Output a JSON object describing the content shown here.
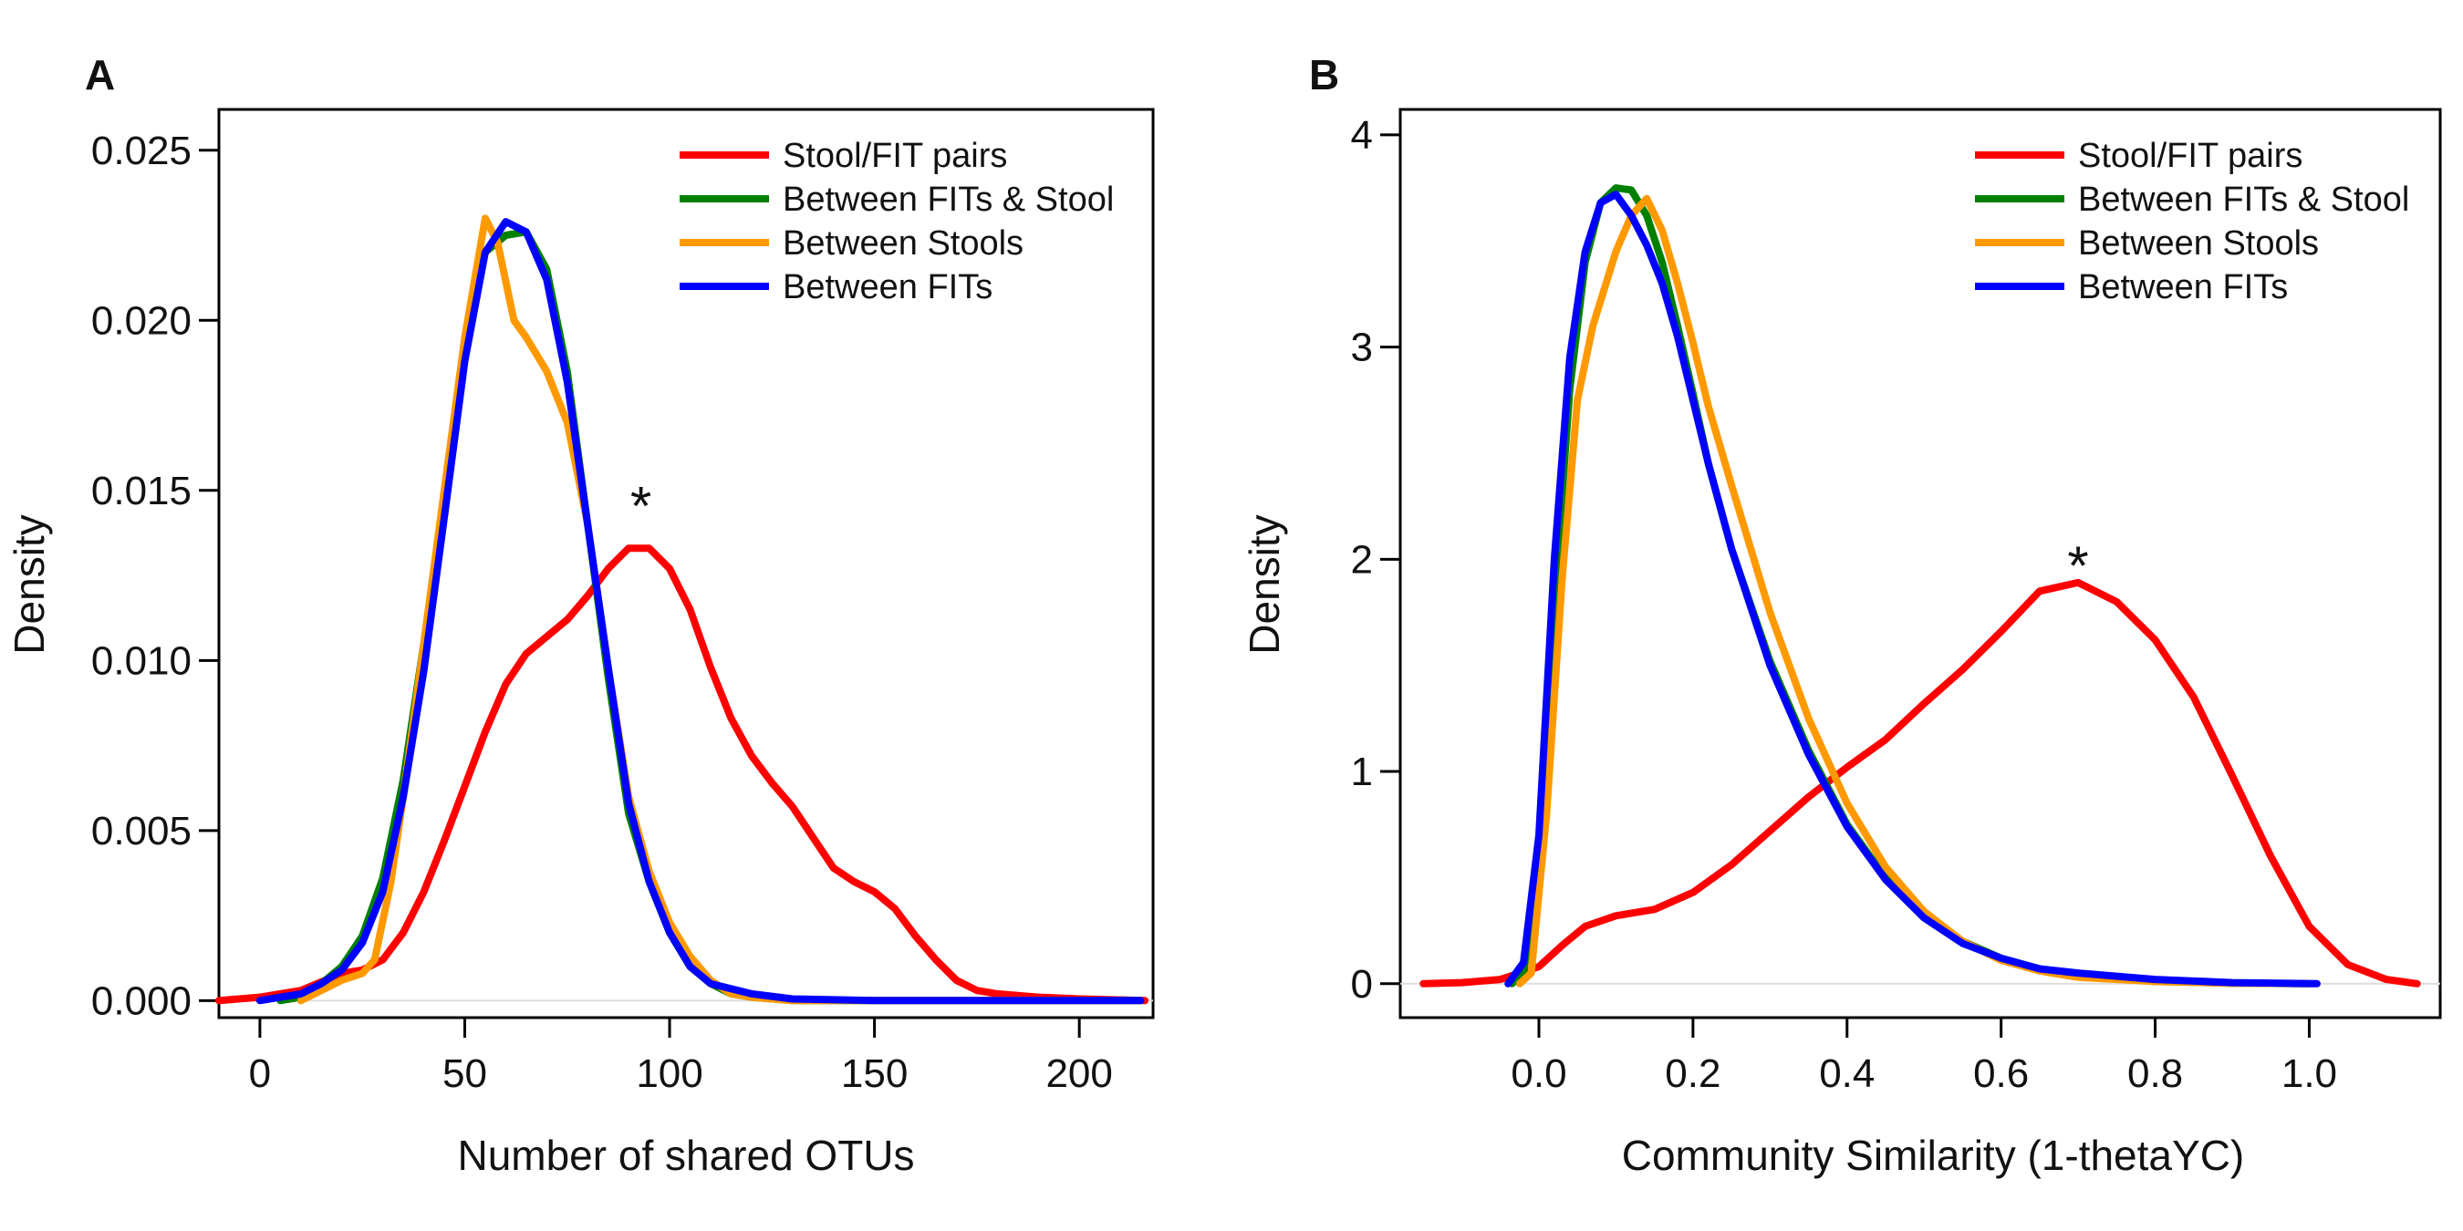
{
  "chart_data": [
    {
      "type": "line",
      "panel_label": "A",
      "xlabel": "Number of shared OTUs",
      "ylabel": "Density",
      "xlim": [
        -10,
        218
      ],
      "ylim": [
        -0.0005,
        0.0262
      ],
      "x_ticks": [
        0,
        50,
        100,
        150,
        200
      ],
      "x_tick_labels": [
        "0",
        "50",
        "100",
        "150",
        "200"
      ],
      "y_ticks": [
        0.0,
        0.005,
        0.01,
        0.015,
        0.02,
        0.025
      ],
      "y_tick_labels": [
        "0.000",
        "0.005",
        "0.010",
        "0.015",
        "0.020",
        "0.025"
      ],
      "legend_position": "top-right",
      "annotation": {
        "text": "*",
        "x": 93,
        "y": 0.0148
      },
      "series": [
        {
          "name": "Stool/FIT pairs",
          "color": "#ff0000",
          "points": [
            [
              -10,
              0
            ],
            [
              0,
              0.0001
            ],
            [
              10,
              0.0003
            ],
            [
              20,
              0.0008
            ],
            [
              25,
              0.0009
            ],
            [
              30,
              0.0012
            ],
            [
              35,
              0.002
            ],
            [
              40,
              0.0032
            ],
            [
              45,
              0.0047
            ],
            [
              50,
              0.0063
            ],
            [
              55,
              0.0079
            ],
            [
              60,
              0.0093
            ],
            [
              65,
              0.0102
            ],
            [
              70,
              0.0107
            ],
            [
              75,
              0.0112
            ],
            [
              80,
              0.0119
            ],
            [
              85,
              0.0127
            ],
            [
              90,
              0.0133
            ],
            [
              95,
              0.0133
            ],
            [
              100,
              0.0127
            ],
            [
              105,
              0.0115
            ],
            [
              110,
              0.0098
            ],
            [
              115,
              0.0083
            ],
            [
              120,
              0.0072
            ],
            [
              125,
              0.0064
            ],
            [
              130,
              0.0057
            ],
            [
              135,
              0.0048
            ],
            [
              140,
              0.0039
            ],
            [
              145,
              0.0035
            ],
            [
              150,
              0.0032
            ],
            [
              155,
              0.0027
            ],
            [
              160,
              0.0019
            ],
            [
              165,
              0.0012
            ],
            [
              170,
              0.0006
            ],
            [
              175,
              0.0003
            ],
            [
              180,
              0.0002
            ],
            [
              190,
              0.0001
            ],
            [
              200,
              5e-05
            ],
            [
              216,
              0
            ]
          ]
        },
        {
          "name": "Between FITs & Stool",
          "color": "#008000",
          "points": [
            [
              5,
              0
            ],
            [
              10,
              0.0001
            ],
            [
              15,
              0.0005
            ],
            [
              20,
              0.001
            ],
            [
              25,
              0.0019
            ],
            [
              30,
              0.0036
            ],
            [
              35,
              0.0065
            ],
            [
              40,
              0.0105
            ],
            [
              45,
              0.0148
            ],
            [
              50,
              0.0193
            ],
            [
              55,
              0.022
            ],
            [
              60,
              0.0225
            ],
            [
              65,
              0.0226
            ],
            [
              70,
              0.0215
            ],
            [
              75,
              0.0185
            ],
            [
              80,
              0.014
            ],
            [
              85,
              0.0095
            ],
            [
              90,
              0.0055
            ],
            [
              95,
              0.0035
            ],
            [
              100,
              0.002
            ],
            [
              105,
              0.001
            ],
            [
              110,
              0.0005
            ],
            [
              115,
              0.0002
            ],
            [
              120,
              0.0001
            ],
            [
              130,
              0
            ],
            [
              215,
              0
            ]
          ]
        },
        {
          "name": "Between Stools",
          "color": "#ff9900",
          "points": [
            [
              10,
              0
            ],
            [
              15,
              0.0003
            ],
            [
              20,
              0.0006
            ],
            [
              25,
              0.0008
            ],
            [
              28,
              0.0012
            ],
            [
              32,
              0.0035
            ],
            [
              35,
              0.006
            ],
            [
              40,
              0.0105
            ],
            [
              45,
              0.015
            ],
            [
              50,
              0.0195
            ],
            [
              55,
              0.023
            ],
            [
              58,
              0.0223
            ],
            [
              62,
              0.02
            ],
            [
              65,
              0.0195
            ],
            [
              70,
              0.0185
            ],
            [
              75,
              0.017
            ],
            [
              80,
              0.014
            ],
            [
              85,
              0.0098
            ],
            [
              90,
              0.006
            ],
            [
              95,
              0.0038
            ],
            [
              100,
              0.0023
            ],
            [
              105,
              0.0013
            ],
            [
              110,
              0.0006
            ],
            [
              115,
              0.0002
            ],
            [
              120,
              0.0001
            ],
            [
              130,
              0
            ],
            [
              215,
              0
            ]
          ]
        },
        {
          "name": "Between FITs",
          "color": "#0000ff",
          "points": [
            [
              0,
              0
            ],
            [
              10,
              0.0002
            ],
            [
              15,
              0.0005
            ],
            [
              20,
              0.0009
            ],
            [
              25,
              0.0017
            ],
            [
              30,
              0.0032
            ],
            [
              35,
              0.006
            ],
            [
              40,
              0.0097
            ],
            [
              45,
              0.0142
            ],
            [
              50,
              0.0188
            ],
            [
              55,
              0.022
            ],
            [
              60,
              0.0229
            ],
            [
              65,
              0.0226
            ],
            [
              70,
              0.0212
            ],
            [
              75,
              0.0182
            ],
            [
              80,
              0.014
            ],
            [
              85,
              0.0098
            ],
            [
              90,
              0.0058
            ],
            [
              95,
              0.0035
            ],
            [
              100,
              0.002
            ],
            [
              105,
              0.001
            ],
            [
              110,
              0.0005
            ],
            [
              120,
              0.0002
            ],
            [
              130,
              5e-05
            ],
            [
              150,
              0
            ],
            [
              215,
              0
            ]
          ]
        }
      ]
    },
    {
      "type": "line",
      "panel_label": "B",
      "xlabel": "Community Similarity (1-thetaYC)",
      "ylabel": "Density",
      "xlim": [
        -0.18,
        1.17
      ],
      "ylim": [
        -0.16,
        4.12
      ],
      "x_ticks": [
        0.0,
        0.2,
        0.4,
        0.6,
        0.8,
        1.0
      ],
      "x_tick_labels": [
        "0.0",
        "0.2",
        "0.4",
        "0.6",
        "0.8",
        "1.0"
      ],
      "y_ticks": [
        0,
        1,
        2,
        3,
        4
      ],
      "y_tick_labels": [
        "0",
        "1",
        "2",
        "3",
        "4"
      ],
      "legend_position": "top-right",
      "annotation": {
        "text": "*",
        "x": 0.7,
        "y": 2.01
      },
      "series": [
        {
          "name": "Stool/FIT pairs",
          "color": "#ff0000",
          "points": [
            [
              -0.15,
              0
            ],
            [
              -0.1,
              0.005
            ],
            [
              -0.05,
              0.02
            ],
            [
              0,
              0.08
            ],
            [
              0.03,
              0.18
            ],
            [
              0.06,
              0.27
            ],
            [
              0.1,
              0.32
            ],
            [
              0.15,
              0.35
            ],
            [
              0.2,
              0.43
            ],
            [
              0.25,
              0.56
            ],
            [
              0.3,
              0.72
            ],
            [
              0.35,
              0.88
            ],
            [
              0.4,
              1.02
            ],
            [
              0.45,
              1.15
            ],
            [
              0.5,
              1.32
            ],
            [
              0.55,
              1.48
            ],
            [
              0.6,
              1.66
            ],
            [
              0.65,
              1.85
            ],
            [
              0.7,
              1.89
            ],
            [
              0.75,
              1.8
            ],
            [
              0.8,
              1.62
            ],
            [
              0.85,
              1.35
            ],
            [
              0.9,
              0.98
            ],
            [
              0.95,
              0.6
            ],
            [
              1.0,
              0.27
            ],
            [
              1.05,
              0.09
            ],
            [
              1.1,
              0.02
            ],
            [
              1.14,
              0
            ]
          ]
        },
        {
          "name": "Between FITs & Stool",
          "color": "#008000",
          "points": [
            [
              -0.035,
              0
            ],
            [
              -0.02,
              0.05
            ],
            [
              0,
              0.6
            ],
            [
              0.02,
              1.8
            ],
            [
              0.04,
              2.8
            ],
            [
              0.06,
              3.4
            ],
            [
              0.08,
              3.68
            ],
            [
              0.1,
              3.75
            ],
            [
              0.12,
              3.74
            ],
            [
              0.14,
              3.62
            ],
            [
              0.16,
              3.4
            ],
            [
              0.18,
              3.1
            ],
            [
              0.2,
              2.78
            ],
            [
              0.22,
              2.45
            ],
            [
              0.25,
              2.05
            ],
            [
              0.3,
              1.52
            ],
            [
              0.35,
              1.1
            ],
            [
              0.4,
              0.75
            ],
            [
              0.45,
              0.5
            ],
            [
              0.5,
              0.32
            ],
            [
              0.55,
              0.2
            ],
            [
              0.6,
              0.12
            ],
            [
              0.65,
              0.07
            ],
            [
              0.7,
              0.04
            ],
            [
              0.8,
              0.01
            ],
            [
              0.9,
              0.002
            ],
            [
              1.0,
              0
            ]
          ]
        },
        {
          "name": "Between Stools",
          "color": "#ff9900",
          "points": [
            [
              -0.025,
              0
            ],
            [
              -0.01,
              0.05
            ],
            [
              0.01,
              0.8
            ],
            [
              0.03,
              1.9
            ],
            [
              0.05,
              2.75
            ],
            [
              0.07,
              3.1
            ],
            [
              0.1,
              3.45
            ],
            [
              0.12,
              3.62
            ],
            [
              0.14,
              3.7
            ],
            [
              0.16,
              3.55
            ],
            [
              0.18,
              3.3
            ],
            [
              0.2,
              3.02
            ],
            [
              0.22,
              2.72
            ],
            [
              0.25,
              2.35
            ],
            [
              0.3,
              1.75
            ],
            [
              0.35,
              1.25
            ],
            [
              0.4,
              0.85
            ],
            [
              0.45,
              0.55
            ],
            [
              0.5,
              0.34
            ],
            [
              0.55,
              0.2
            ],
            [
              0.6,
              0.11
            ],
            [
              0.65,
              0.06
            ],
            [
              0.7,
              0.03
            ],
            [
              0.8,
              0.01
            ],
            [
              0.9,
              0.002
            ],
            [
              1.0,
              0
            ]
          ]
        },
        {
          "name": "Between FITs",
          "color": "#0000ff",
          "points": [
            [
              -0.04,
              0
            ],
            [
              -0.02,
              0.1
            ],
            [
              0,
              0.7
            ],
            [
              0.02,
              2.0
            ],
            [
              0.04,
              2.95
            ],
            [
              0.06,
              3.45
            ],
            [
              0.08,
              3.68
            ],
            [
              0.1,
              3.72
            ],
            [
              0.12,
              3.62
            ],
            [
              0.14,
              3.48
            ],
            [
              0.16,
              3.3
            ],
            [
              0.18,
              3.05
            ],
            [
              0.2,
              2.75
            ],
            [
              0.22,
              2.45
            ],
            [
              0.25,
              2.05
            ],
            [
              0.3,
              1.5
            ],
            [
              0.35,
              1.08
            ],
            [
              0.4,
              0.74
            ],
            [
              0.45,
              0.49
            ],
            [
              0.5,
              0.31
            ],
            [
              0.55,
              0.19
            ],
            [
              0.6,
              0.12
            ],
            [
              0.65,
              0.07
            ],
            [
              0.7,
              0.05
            ],
            [
              0.8,
              0.02
            ],
            [
              0.9,
              0.005
            ],
            [
              1.01,
              0
            ]
          ]
        }
      ]
    }
  ]
}
